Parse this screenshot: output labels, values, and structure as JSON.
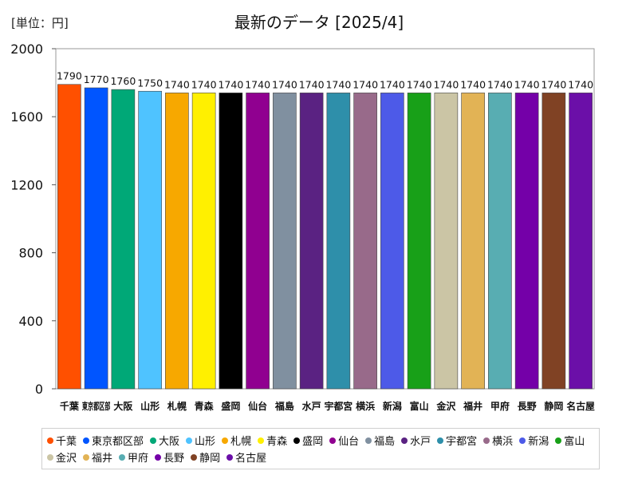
{
  "unit_label": "[単位：円]",
  "chart_data": {
    "type": "bar",
    "title": "最新のデータ [2025/4]",
    "ylim": [
      0,
      2000
    ],
    "yticks": [
      0,
      400,
      800,
      1200,
      1600,
      2000
    ],
    "grid": false,
    "legend_position": "bottom",
    "categories": [
      "千葉",
      "東京都区部",
      "大阪",
      "山形",
      "札幌",
      "青森",
      "盛岡",
      "仙台",
      "福島",
      "水戸",
      "宇都宮",
      "横浜",
      "新潟",
      "富山",
      "金沢",
      "福井",
      "甲府",
      "長野",
      "静岡",
      "名古屋"
    ],
    "values": [
      1790,
      1770,
      1760,
      1750,
      1740,
      1740,
      1740,
      1740,
      1740,
      1740,
      1740,
      1740,
      1740,
      1740,
      1740,
      1740,
      1740,
      1740,
      1740,
      1740
    ],
    "colors": [
      "#ff5000",
      "#0055ff",
      "#00a877",
      "#4fc3ff",
      "#f7a800",
      "#fff000",
      "#000000",
      "#900090",
      "#8090a0",
      "#5a2282",
      "#2e8faa",
      "#986a8a",
      "#4d5ae8",
      "#18a018",
      "#cbc5a5",
      "#e2b355",
      "#58adb2",
      "#7400a8",
      "#804224",
      "#6b0fa8"
    ]
  }
}
